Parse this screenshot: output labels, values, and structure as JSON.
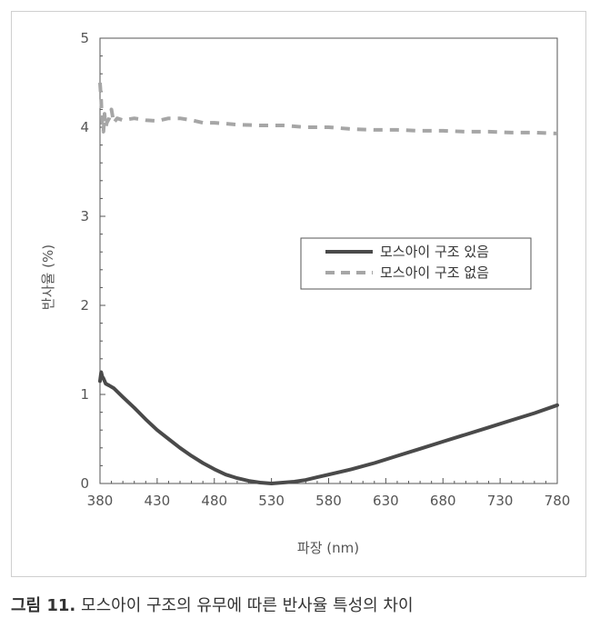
{
  "chart_data": {
    "type": "line",
    "xlabel": "파장 (nm)",
    "ylabel": "반사율 (%)",
    "xlim": [
      380,
      780
    ],
    "ylim": [
      0,
      5
    ],
    "xticks": [
      380,
      430,
      480,
      530,
      580,
      630,
      680,
      730,
      780
    ],
    "yticks": [
      0,
      1,
      2,
      3,
      4,
      5
    ],
    "grid": false,
    "legend": "right",
    "series": [
      {
        "name": "모스아이 구조 있음",
        "style": "solid",
        "color": "#4a4a4a",
        "x": [
          380,
          381,
          382,
          383,
          385,
          388,
          392,
          400,
          410,
          420,
          430,
          440,
          450,
          460,
          470,
          480,
          490,
          500,
          510,
          520,
          530,
          540,
          550,
          560,
          570,
          580,
          600,
          620,
          640,
          660,
          680,
          700,
          720,
          740,
          760,
          780
        ],
        "y": [
          1.15,
          1.25,
          1.2,
          1.18,
          1.12,
          1.1,
          1.07,
          0.97,
          0.85,
          0.72,
          0.6,
          0.5,
          0.4,
          0.31,
          0.23,
          0.16,
          0.1,
          0.06,
          0.03,
          0.01,
          0.0,
          0.01,
          0.02,
          0.04,
          0.07,
          0.1,
          0.16,
          0.23,
          0.31,
          0.39,
          0.47,
          0.55,
          0.63,
          0.71,
          0.79,
          0.88
        ]
      },
      {
        "name": "모스아이 구조 없음",
        "style": "dashed",
        "color": "#a6a6a6",
        "x": [
          380,
          381,
          382,
          383,
          384,
          385,
          386,
          388,
          390,
          392,
          395,
          400,
          410,
          420,
          430,
          440,
          450,
          460,
          470,
          480,
          500,
          520,
          540,
          560,
          580,
          600,
          620,
          640,
          660,
          680,
          700,
          720,
          740,
          760,
          780
        ],
        "y": [
          4.5,
          4.3,
          4.0,
          3.95,
          4.15,
          4.0,
          4.05,
          4.1,
          4.2,
          4.05,
          4.1,
          4.08,
          4.1,
          4.08,
          4.07,
          4.1,
          4.1,
          4.08,
          4.05,
          4.05,
          4.03,
          4.02,
          4.02,
          4.0,
          4.0,
          3.98,
          3.97,
          3.97,
          3.96,
          3.96,
          3.95,
          3.95,
          3.94,
          3.94,
          3.93
        ]
      }
    ]
  },
  "caption": {
    "label": "그림 11.",
    "text": "모스아이 구조의 유무에 따른 반사율 특성의 차이"
  }
}
